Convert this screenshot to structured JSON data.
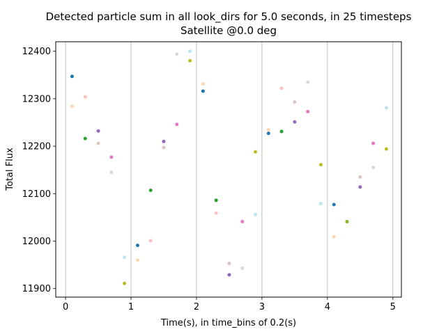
{
  "chart_data": {
    "type": "scatter",
    "title": "Detected particle sum in all look_dirs for 5.0 seconds, in 25 timesteps",
    "subtitle": "Satellite @0.0 deg",
    "xlabel": "Time(s), in time_bins of 0.2(s)",
    "ylabel": "Total Flux",
    "xlim": [
      -0.15,
      5.13
    ],
    "ylim": [
      11882,
      12420
    ],
    "xticks": [
      0,
      1,
      2,
      3,
      4,
      5
    ],
    "yticks": [
      11900,
      12000,
      12100,
      12200,
      12300,
      12400
    ],
    "vertical_grid": [
      0,
      1,
      2,
      3,
      4,
      5
    ],
    "points": [
      {
        "x": 0.1,
        "y": 12347,
        "color": "#1f77b4",
        "alpha": 1
      },
      {
        "x": 0.1,
        "y": 12284,
        "color": "#ffbb78",
        "alpha": 0.6
      },
      {
        "x": 0.3,
        "y": 12304,
        "color": "#ff9896",
        "alpha": 0.6
      },
      {
        "x": 0.3,
        "y": 12216,
        "color": "#2ca02c",
        "alpha": 1
      },
      {
        "x": 0.5,
        "y": 12232,
        "color": "#9467bd",
        "alpha": 1
      },
      {
        "x": 0.5,
        "y": 12206,
        "color": "#c49c94",
        "alpha": 0.6
      },
      {
        "x": 0.7,
        "y": 12177,
        "color": "#e377c2",
        "alpha": 1
      },
      {
        "x": 0.7,
        "y": 12145,
        "color": "#c7c7c7",
        "alpha": 0.7
      },
      {
        "x": 0.9,
        "y": 11966,
        "color": "#9edae5",
        "alpha": 0.7
      },
      {
        "x": 0.9,
        "y": 11911,
        "color": "#bcbd22",
        "alpha": 1
      },
      {
        "x": 1.1,
        "y": 11991,
        "color": "#1f77b4",
        "alpha": 1
      },
      {
        "x": 1.1,
        "y": 11960,
        "color": "#ffbb78",
        "alpha": 0.6
      },
      {
        "x": 1.3,
        "y": 12001,
        "color": "#ff9896",
        "alpha": 0.6
      },
      {
        "x": 1.3,
        "y": 12107,
        "color": "#2ca02c",
        "alpha": 1
      },
      {
        "x": 1.5,
        "y": 12210,
        "color": "#9467bd",
        "alpha": 1
      },
      {
        "x": 1.5,
        "y": 12197,
        "color": "#c49c94",
        "alpha": 0.6
      },
      {
        "x": 1.7,
        "y": 12246,
        "color": "#e377c2",
        "alpha": 1
      },
      {
        "x": 1.7,
        "y": 12394,
        "color": "#c7c7c7",
        "alpha": 0.7
      },
      {
        "x": 1.9,
        "y": 12400,
        "color": "#9edae5",
        "alpha": 0.7
      },
      {
        "x": 1.9,
        "y": 12380,
        "color": "#bcbd22",
        "alpha": 1
      },
      {
        "x": 2.1,
        "y": 12316,
        "color": "#1f77b4",
        "alpha": 1
      },
      {
        "x": 2.1,
        "y": 12331,
        "color": "#ffbb78",
        "alpha": 0.6
      },
      {
        "x": 2.3,
        "y": 12059,
        "color": "#ff9896",
        "alpha": 0.6
      },
      {
        "x": 2.3,
        "y": 12086,
        "color": "#2ca02c",
        "alpha": 1
      },
      {
        "x": 2.5,
        "y": 11929,
        "color": "#9467bd",
        "alpha": 1
      },
      {
        "x": 2.5,
        "y": 11953,
        "color": "#c49c94",
        "alpha": 0.6
      },
      {
        "x": 2.7,
        "y": 12041,
        "color": "#e377c2",
        "alpha": 1
      },
      {
        "x": 2.7,
        "y": 11943,
        "color": "#c7c7c7",
        "alpha": 0.7
      },
      {
        "x": 2.9,
        "y": 12056,
        "color": "#9edae5",
        "alpha": 0.7
      },
      {
        "x": 2.9,
        "y": 12188,
        "color": "#bcbd22",
        "alpha": 1
      },
      {
        "x": 3.1,
        "y": 12227,
        "color": "#1f77b4",
        "alpha": 1
      },
      {
        "x": 3.1,
        "y": 12235,
        "color": "#ffbb78",
        "alpha": 0.6
      },
      {
        "x": 3.3,
        "y": 12322,
        "color": "#ff9896",
        "alpha": 0.6
      },
      {
        "x": 3.3,
        "y": 12231,
        "color": "#2ca02c",
        "alpha": 1
      },
      {
        "x": 3.5,
        "y": 12251,
        "color": "#9467bd",
        "alpha": 1
      },
      {
        "x": 3.5,
        "y": 12293,
        "color": "#c49c94",
        "alpha": 0.6
      },
      {
        "x": 3.7,
        "y": 12273,
        "color": "#e377c2",
        "alpha": 1
      },
      {
        "x": 3.7,
        "y": 12335,
        "color": "#c7c7c7",
        "alpha": 0.7
      },
      {
        "x": 3.9,
        "y": 12079,
        "color": "#9edae5",
        "alpha": 0.7
      },
      {
        "x": 3.9,
        "y": 12161,
        "color": "#bcbd22",
        "alpha": 1
      },
      {
        "x": 4.1,
        "y": 12077,
        "color": "#1f77b4",
        "alpha": 1
      },
      {
        "x": 4.1,
        "y": 12009,
        "color": "#ffbb78",
        "alpha": 0.6
      },
      {
        "x": 4.3,
        "y": 12041,
        "color": "#2ca02c",
        "alpha": 1
      },
      {
        "x": 4.3,
        "y": 12041,
        "color": "#bcbd22",
        "alpha": 0.7
      },
      {
        "x": 4.5,
        "y": 12114,
        "color": "#9467bd",
        "alpha": 1
      },
      {
        "x": 4.5,
        "y": 12135,
        "color": "#c49c94",
        "alpha": 0.6
      },
      {
        "x": 4.7,
        "y": 12206,
        "color": "#e377c2",
        "alpha": 1
      },
      {
        "x": 4.7,
        "y": 12155,
        "color": "#c7c7c7",
        "alpha": 0.7
      },
      {
        "x": 4.9,
        "y": 12281,
        "color": "#9edae5",
        "alpha": 0.7
      },
      {
        "x": 4.9,
        "y": 12194,
        "color": "#bcbd22",
        "alpha": 1
      }
    ]
  }
}
